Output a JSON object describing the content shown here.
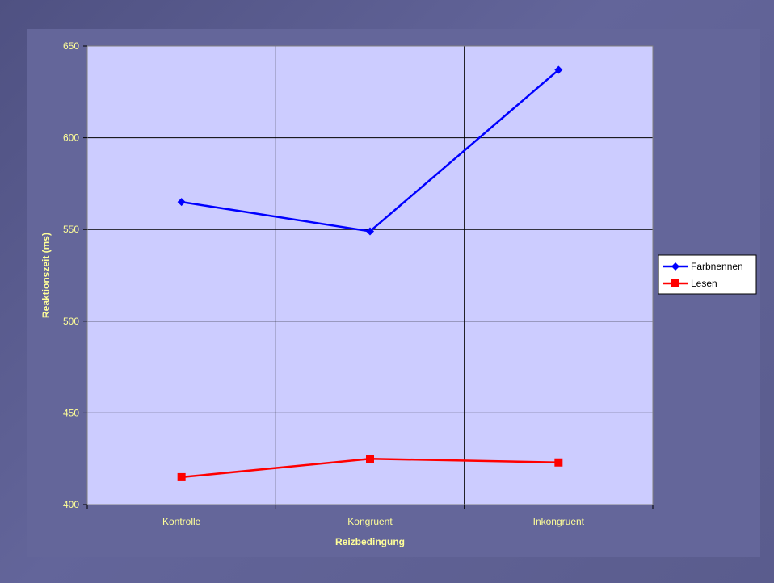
{
  "chart_data": {
    "type": "line",
    "categories": [
      "Kontrolle",
      "Kongruent",
      "Inkongruent"
    ],
    "series": [
      {
        "name": "Farbnennen",
        "values": [
          565,
          549,
          637
        ],
        "color": "#0000ff",
        "marker": "diamond"
      },
      {
        "name": "Lesen",
        "values": [
          415,
          425,
          423
        ],
        "color": "#ff0000",
        "marker": "square"
      }
    ],
    "xlabel": "Reizbedingung",
    "ylabel": "Reaktionszeit (ms)",
    "ylim": [
      400,
      650
    ],
    "yticks": [
      400,
      450,
      500,
      550,
      600,
      650
    ],
    "grid": true,
    "legend": "right",
    "colors": {
      "plot_background": "#ccccff",
      "text": "#ffff99",
      "gridline": "#000000"
    }
  }
}
